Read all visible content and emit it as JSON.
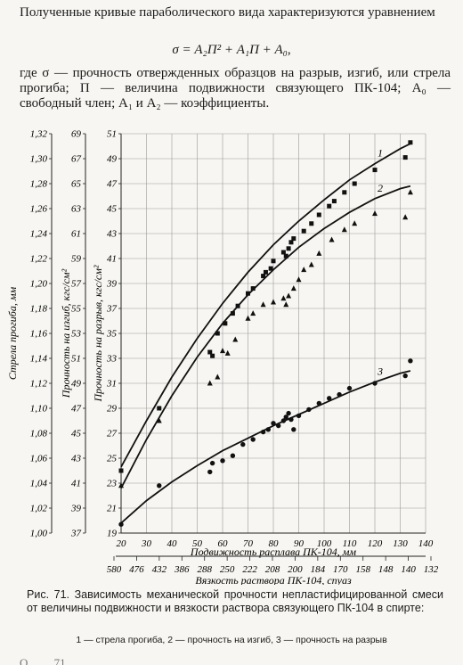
{
  "intro": "Полученные кривые параболического вида характеризуются уравнением",
  "formula": "σ = A₂П² + A₁П + A₀,",
  "explanation": "где σ — прочность отвержденных образцов на разрыв, изгиб, или стрела прогиба; П — величина подвижности связующего ПК-104; A₀ — свободный член; A₁ и A₂ — коэффициенты.",
  "caption": "Рис. 71. Зависимость механической прочности непластифицированной смеси от величины подвижности и вязкости раствора связующего ПК-104 в спирте:",
  "series_legend": "1 — стрела прогиба, 2 — прочность на изгиб, 3 — прочность на разрыв",
  "bottom_fragment": "О ... ... 71 ... ... ... ... ... ... ...",
  "chart_data": {
    "type": "scatter",
    "x_axis": {
      "label": "Подвижность расплава ПК-104, мм",
      "range": [
        20,
        140
      ],
      "ticks": [
        "20",
        "30",
        "40",
        "50",
        "60",
        "70",
        "80",
        "90",
        "100",
        "110",
        "120",
        "130",
        "140"
      ]
    },
    "x2_axis": {
      "label": "Вязкость раствора ПК-104, спуаз",
      "ticks": [
        "580",
        "476",
        "432",
        "386",
        "288",
        "250",
        "222",
        "208",
        "200",
        "184",
        "170",
        "158",
        "148",
        "140",
        "132"
      ]
    },
    "y_axes": [
      {
        "id": "deflection",
        "label": "Стрела прогиба, мм",
        "range": [
          1.0,
          1.32
        ],
        "ticks": [
          "1,00",
          "1,02",
          "1,04",
          "1,06",
          "1,08",
          "1,10",
          "1,12",
          "1,14",
          "1,16",
          "1,18",
          "1,20",
          "1,22",
          "1,24",
          "1,26",
          "1,28",
          "1,30",
          "1,32"
        ]
      },
      {
        "id": "bending",
        "label": "Прочность на изгиб, кгс/см²",
        "range": [
          37,
          69
        ],
        "ticks": [
          "37",
          "39",
          "41",
          "43",
          "45",
          "47",
          "49",
          "51",
          "53",
          "55",
          "57",
          "59",
          "61",
          "63",
          "65",
          "67",
          "69"
        ]
      },
      {
        "id": "tensile",
        "label": "Прочность на разрыв, кгс/см²",
        "range": [
          19,
          51
        ],
        "ticks": [
          "19",
          "21",
          "23",
          "25",
          "27",
          "29",
          "31",
          "33",
          "35",
          "37",
          "39",
          "41",
          "43",
          "45",
          "47",
          "49",
          "51"
        ]
      }
    ],
    "grid": true,
    "series": [
      {
        "name": "1",
        "marker": "square",
        "curve": [
          [
            20,
            24.3
          ],
          [
            30,
            28.0
          ],
          [
            40,
            31.5
          ],
          [
            50,
            34.6
          ],
          [
            60,
            37.4
          ],
          [
            70,
            39.9
          ],
          [
            80,
            42.1
          ],
          [
            90,
            44.0
          ],
          [
            100,
            45.7
          ],
          [
            110,
            47.3
          ],
          [
            120,
            48.6
          ],
          [
            130,
            49.8
          ],
          [
            134,
            50.2
          ]
        ],
        "points": [
          [
            20,
            24.0
          ],
          [
            35,
            29.0
          ],
          [
            55,
            33.5
          ],
          [
            56,
            33.2
          ],
          [
            58,
            35.0
          ],
          [
            61,
            35.8
          ],
          [
            64,
            36.6
          ],
          [
            66,
            37.2
          ],
          [
            70,
            38.2
          ],
          [
            72,
            38.6
          ],
          [
            76,
            39.6
          ],
          [
            77,
            39.9
          ],
          [
            79,
            40.2
          ],
          [
            80,
            40.8
          ],
          [
            84,
            41.5
          ],
          [
            85,
            41.2
          ],
          [
            86,
            41.8
          ],
          [
            87,
            42.3
          ],
          [
            88,
            42.6
          ],
          [
            92,
            43.2
          ],
          [
            95,
            43.8
          ],
          [
            98,
            44.5
          ],
          [
            102,
            45.2
          ],
          [
            104,
            45.6
          ],
          [
            108,
            46.3
          ],
          [
            112,
            47.0
          ],
          [
            120,
            48.1
          ],
          [
            132,
            49.1
          ],
          [
            134,
            50.3
          ]
        ]
      },
      {
        "name": "2",
        "marker": "triangle",
        "curve": [
          [
            20,
            22.6
          ],
          [
            30,
            26.5
          ],
          [
            40,
            30.0
          ],
          [
            50,
            33.1
          ],
          [
            60,
            35.8
          ],
          [
            70,
            38.1
          ],
          [
            80,
            40.1
          ],
          [
            90,
            41.9
          ],
          [
            100,
            43.4
          ],
          [
            110,
            44.7
          ],
          [
            120,
            45.8
          ],
          [
            130,
            46.6
          ],
          [
            134,
            46.8
          ]
        ],
        "points": [
          [
            20,
            22.8
          ],
          [
            35,
            28.0
          ],
          [
            55,
            31.0
          ],
          [
            58,
            31.5
          ],
          [
            60,
            33.6
          ],
          [
            62,
            33.4
          ],
          [
            65,
            34.5
          ],
          [
            70,
            36.2
          ],
          [
            72,
            36.6
          ],
          [
            76,
            37.3
          ],
          [
            80,
            37.5
          ],
          [
            84,
            37.8
          ],
          [
            85,
            37.3
          ],
          [
            86,
            38.0
          ],
          [
            88,
            38.6
          ],
          [
            90,
            39.3
          ],
          [
            92,
            40.1
          ],
          [
            95,
            40.5
          ],
          [
            98,
            41.4
          ],
          [
            103,
            42.5
          ],
          [
            108,
            43.3
          ],
          [
            112,
            43.8
          ],
          [
            120,
            44.6
          ],
          [
            132,
            44.3
          ],
          [
            134,
            46.3
          ]
        ]
      },
      {
        "name": "3",
        "marker": "circle",
        "curve": [
          [
            20,
            19.8
          ],
          [
            30,
            21.6
          ],
          [
            40,
            23.1
          ],
          [
            50,
            24.4
          ],
          [
            60,
            25.6
          ],
          [
            70,
            26.6
          ],
          [
            80,
            27.6
          ],
          [
            90,
            28.5
          ],
          [
            100,
            29.4
          ],
          [
            110,
            30.3
          ],
          [
            120,
            31.1
          ],
          [
            130,
            31.8
          ],
          [
            134,
            32.0
          ]
        ],
        "points": [
          [
            20,
            19.7
          ],
          [
            35,
            22.8
          ],
          [
            55,
            23.9
          ],
          [
            56,
            24.6
          ],
          [
            60,
            24.8
          ],
          [
            64,
            25.2
          ],
          [
            68,
            26.1
          ],
          [
            72,
            26.5
          ],
          [
            76,
            27.1
          ],
          [
            78,
            27.3
          ],
          [
            80,
            27.8
          ],
          [
            82,
            27.6
          ],
          [
            84,
            28.0
          ],
          [
            85,
            28.3
          ],
          [
            86,
            28.6
          ],
          [
            87,
            28.1
          ],
          [
            88,
            27.3
          ],
          [
            90,
            28.4
          ],
          [
            94,
            28.9
          ],
          [
            98,
            29.4
          ],
          [
            102,
            29.8
          ],
          [
            106,
            30.1
          ],
          [
            110,
            30.6
          ],
          [
            120,
            31.0
          ],
          [
            132,
            31.6
          ],
          [
            134,
            32.8
          ]
        ]
      }
    ]
  }
}
